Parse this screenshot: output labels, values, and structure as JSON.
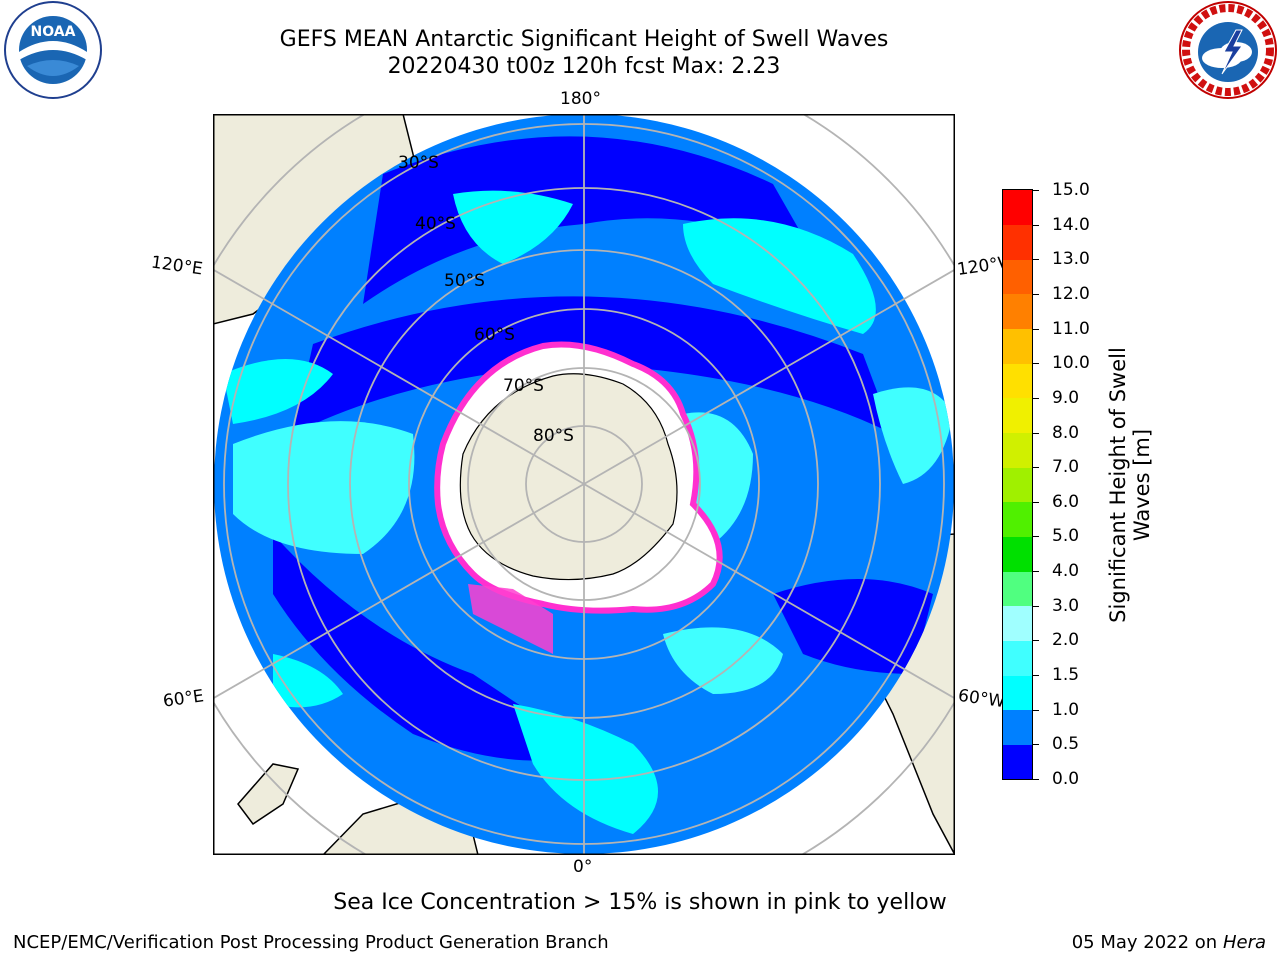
{
  "header": {
    "title_line1": "GEFS MEAN Antarctic Significant Height of Swell Waves",
    "title_line2": "20220430 t00z 120h fcst   Max: 2.23"
  },
  "logos": {
    "left": {
      "text": "NOAA",
      "ring_text": "NATIONAL OCEANIC AND ATMOSPHERIC ADMINISTRATION · U.S. DEPARTMENT OF COMMERCE"
    },
    "right": {
      "ring_text": "NATIONAL WEATHER SERVICE"
    }
  },
  "map": {
    "longitude_labels": {
      "top": "180°",
      "bottom": "0°",
      "upper_left": "120°E",
      "upper_right": "120°W",
      "lower_left": "60°E",
      "lower_right": "60°W"
    },
    "latitude_labels": [
      "30°S",
      "40°S",
      "50°S",
      "60°S",
      "70°S",
      "80°S"
    ],
    "colors": {
      "land": "#eeecdc",
      "ice": "#ffffff",
      "ice_edge": "#ff2fd0",
      "grid": "#b4b4b4"
    }
  },
  "colorbar": {
    "label": "Significant Height of Swell Waves [m]",
    "ticks": [
      "0.0",
      "0.5",
      "1.0",
      "1.5",
      "2.0",
      "3.0",
      "4.0",
      "5.0",
      "6.0",
      "7.0",
      "8.0",
      "9.0",
      "10.0",
      "11.0",
      "12.0",
      "13.0",
      "14.0",
      "15.0"
    ],
    "colors": [
      "#0000ff",
      "#0080ff",
      "#00ffff",
      "#40ffff",
      "#a0ffff",
      "#50ff80",
      "#00e000",
      "#50f000",
      "#a0f000",
      "#d0f000",
      "#f0f000",
      "#ffe000",
      "#ffc000",
      "#ff8000",
      "#ff6000",
      "#ff3000",
      "#ff0000"
    ]
  },
  "footer": {
    "note": "Sea Ice Concentration > 15% is shown in pink to yellow",
    "credit": "NCEP/EMC/Verification Post Processing Product Generation Branch",
    "date": "05 May 2022 on",
    "host": "Hera"
  }
}
